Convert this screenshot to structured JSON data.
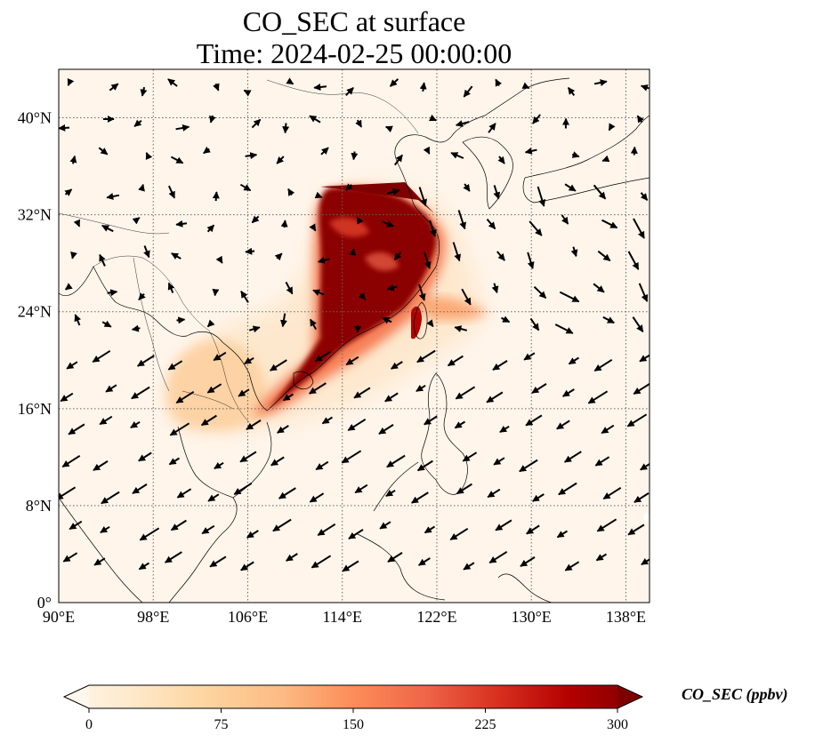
{
  "title_line1": "CO_SEC at surface",
  "title_line2": "Time: 2024-02-25 00:00:00",
  "map": {
    "lon_range": [
      90,
      140
    ],
    "lat_range": [
      0,
      44
    ],
    "lon_ticks": [
      "90°E",
      "98°E",
      "106°E",
      "114°E",
      "122°E",
      "130°E",
      "138°E"
    ],
    "lon_tick_values": [
      90,
      98,
      106,
      114,
      122,
      130,
      138
    ],
    "lat_ticks": [
      "0°",
      "8°N",
      "16°N",
      "24°N",
      "32°N",
      "40°N"
    ],
    "lat_tick_values": [
      0,
      8,
      16,
      24,
      32,
      40
    ],
    "gridlines": "dotted",
    "background_color": "#fff5eb",
    "plume_color_high": "#7f0000",
    "vector_field": "wind arrows (black)"
  },
  "colorbar": {
    "label": "CO_SEC (ppbv)",
    "min": 0,
    "max": 300,
    "ticks": [
      "0",
      "75",
      "150",
      "225",
      "300"
    ],
    "tick_values": [
      0,
      75,
      150,
      225,
      300
    ],
    "extend": "both",
    "colormap": "OrRd",
    "colors": [
      "#fff7ec",
      "#fee8c8",
      "#fdd49e",
      "#fdbb84",
      "#fc8d59",
      "#ef6548",
      "#d7301f",
      "#b30000",
      "#7f0000"
    ]
  }
}
